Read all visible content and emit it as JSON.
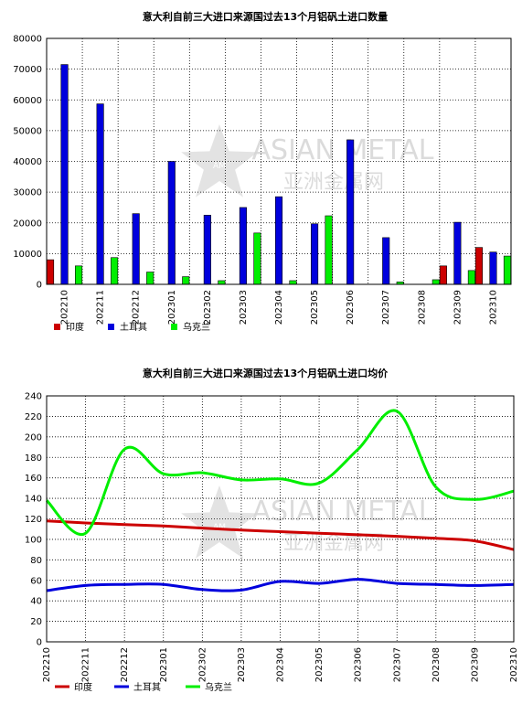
{
  "watermark": {
    "name": "ASIAN METAL",
    "name_cn": "亚洲金属网",
    "logo": "AM"
  },
  "colors": {
    "india": "#cc0000",
    "turkey": "#0000dd",
    "ukraine": "#00ee00"
  },
  "chart_data": [
    {
      "type": "bar",
      "title": "意大利自前三大进口来源国过去13个月铝矾土进口数量",
      "categories": [
        "202210",
        "202211",
        "202212",
        "202301",
        "202302",
        "202303",
        "202304",
        "202305",
        "202306",
        "202307",
        "202308",
        "202309",
        "202310"
      ],
      "ylim": [
        0,
        80000
      ],
      "yticks": [
        0,
        10000,
        20000,
        30000,
        40000,
        50000,
        60000,
        70000,
        80000
      ],
      "grid": true,
      "legend_position": "bottom-left",
      "series": [
        {
          "name": "印度",
          "color": "#cc0000",
          "values": [
            8000,
            0,
            0,
            0,
            0,
            0,
            0,
            0,
            0,
            0,
            0,
            6000,
            12000
          ]
        },
        {
          "name": "土耳其",
          "color": "#0000dd",
          "values": [
            71500,
            58700,
            23000,
            40000,
            22500,
            25000,
            28500,
            19700,
            47000,
            15200,
            0,
            20200,
            10500
          ]
        },
        {
          "name": "乌克兰",
          "color": "#00ee00",
          "values": [
            6000,
            8700,
            4000,
            2500,
            1200,
            16700,
            1200,
            22300,
            0,
            800,
            1500,
            4500,
            9200
          ]
        }
      ]
    },
    {
      "type": "line",
      "title": "意大利自前三大进口来源国过去13个月铝矾土进口均价",
      "categories": [
        "202210",
        "202211",
        "202212",
        "202301",
        "202302",
        "202303",
        "202304",
        "202305",
        "202306",
        "202307",
        "202308",
        "202309",
        "202310"
      ],
      "ylim": [
        0,
        240
      ],
      "yticks": [
        0,
        20,
        40,
        60,
        80,
        100,
        120,
        140,
        160,
        180,
        200,
        220,
        240
      ],
      "grid": true,
      "legend_position": "bottom-left",
      "series": [
        {
          "name": "印度",
          "color": "#cc0000",
          "values": [
            118,
            116,
            114.5,
            113,
            111,
            109,
            107.5,
            106,
            104.5,
            103,
            101,
            98.5,
            90
          ]
        },
        {
          "name": "土耳其",
          "color": "#0000dd",
          "values": [
            50,
            55,
            56,
            56,
            51,
            50.5,
            59,
            57,
            61,
            57,
            56,
            55,
            56
          ]
        },
        {
          "name": "乌克兰",
          "color": "#00ee00",
          "values": [
            138,
            106,
            188,
            164,
            165,
            158,
            159,
            155,
            188,
            225,
            151,
            139,
            147
          ]
        }
      ]
    }
  ]
}
